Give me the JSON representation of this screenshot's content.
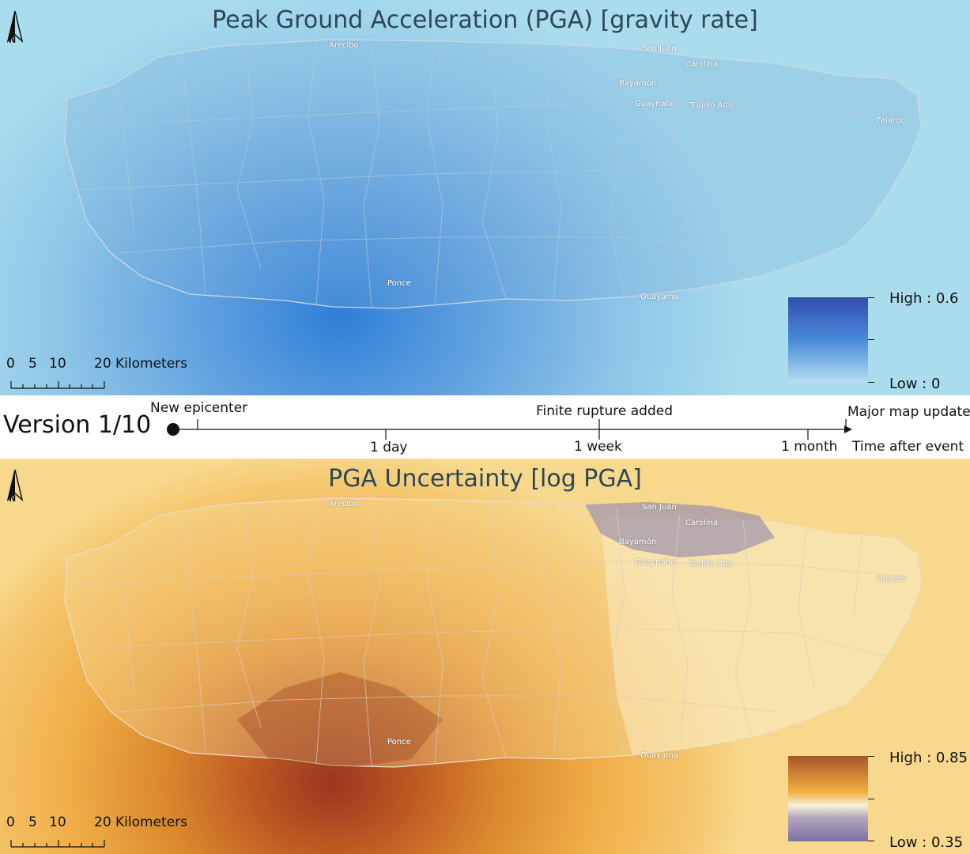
{
  "pga_map": {
    "title": "Peak Ground Acceleration (PGA) [gravity rate]",
    "north_label": "N",
    "cities": [
      "Arecibo",
      "San Juan",
      "Carolina",
      "Bayamón",
      "Guaynabo",
      "Trujillo Alto",
      "Fajardo",
      "Ponce",
      "Guayama"
    ],
    "scale": {
      "ticks": [
        "0",
        "5",
        "10",
        "20 Kilometers"
      ]
    },
    "legend": {
      "high": "High : 0.6",
      "low": "Low : 0",
      "colors": [
        "#2f4fa8",
        "#4a8ad8",
        "#b6def0"
      ]
    }
  },
  "timeline": {
    "version": "Version  1/10",
    "events": [
      "New epicenter",
      "Finite rupture added",
      "Major map update"
    ],
    "ticks": [
      "1 day",
      "1 week",
      "1 month"
    ],
    "axis_label": "Time after event",
    "current_fraction": 0
  },
  "unc_map": {
    "title": "PGA Uncertainty [log PGA]",
    "north_label": "N",
    "cities": [
      "Arecibo",
      "San Juan",
      "Carolina",
      "Bayamón",
      "Guaynabo",
      "Trujillo Alto",
      "Fajardo",
      "Ponce",
      "Guayama"
    ],
    "scale": {
      "ticks": [
        "0",
        "5",
        "10",
        "20 Kilometers"
      ]
    },
    "legend": {
      "high": "High : 0.85",
      "low": "Low : 0.35",
      "colors": [
        "#a8542a",
        "#f0b040",
        "#f8f0d8",
        "#7a6fa0"
      ]
    }
  }
}
